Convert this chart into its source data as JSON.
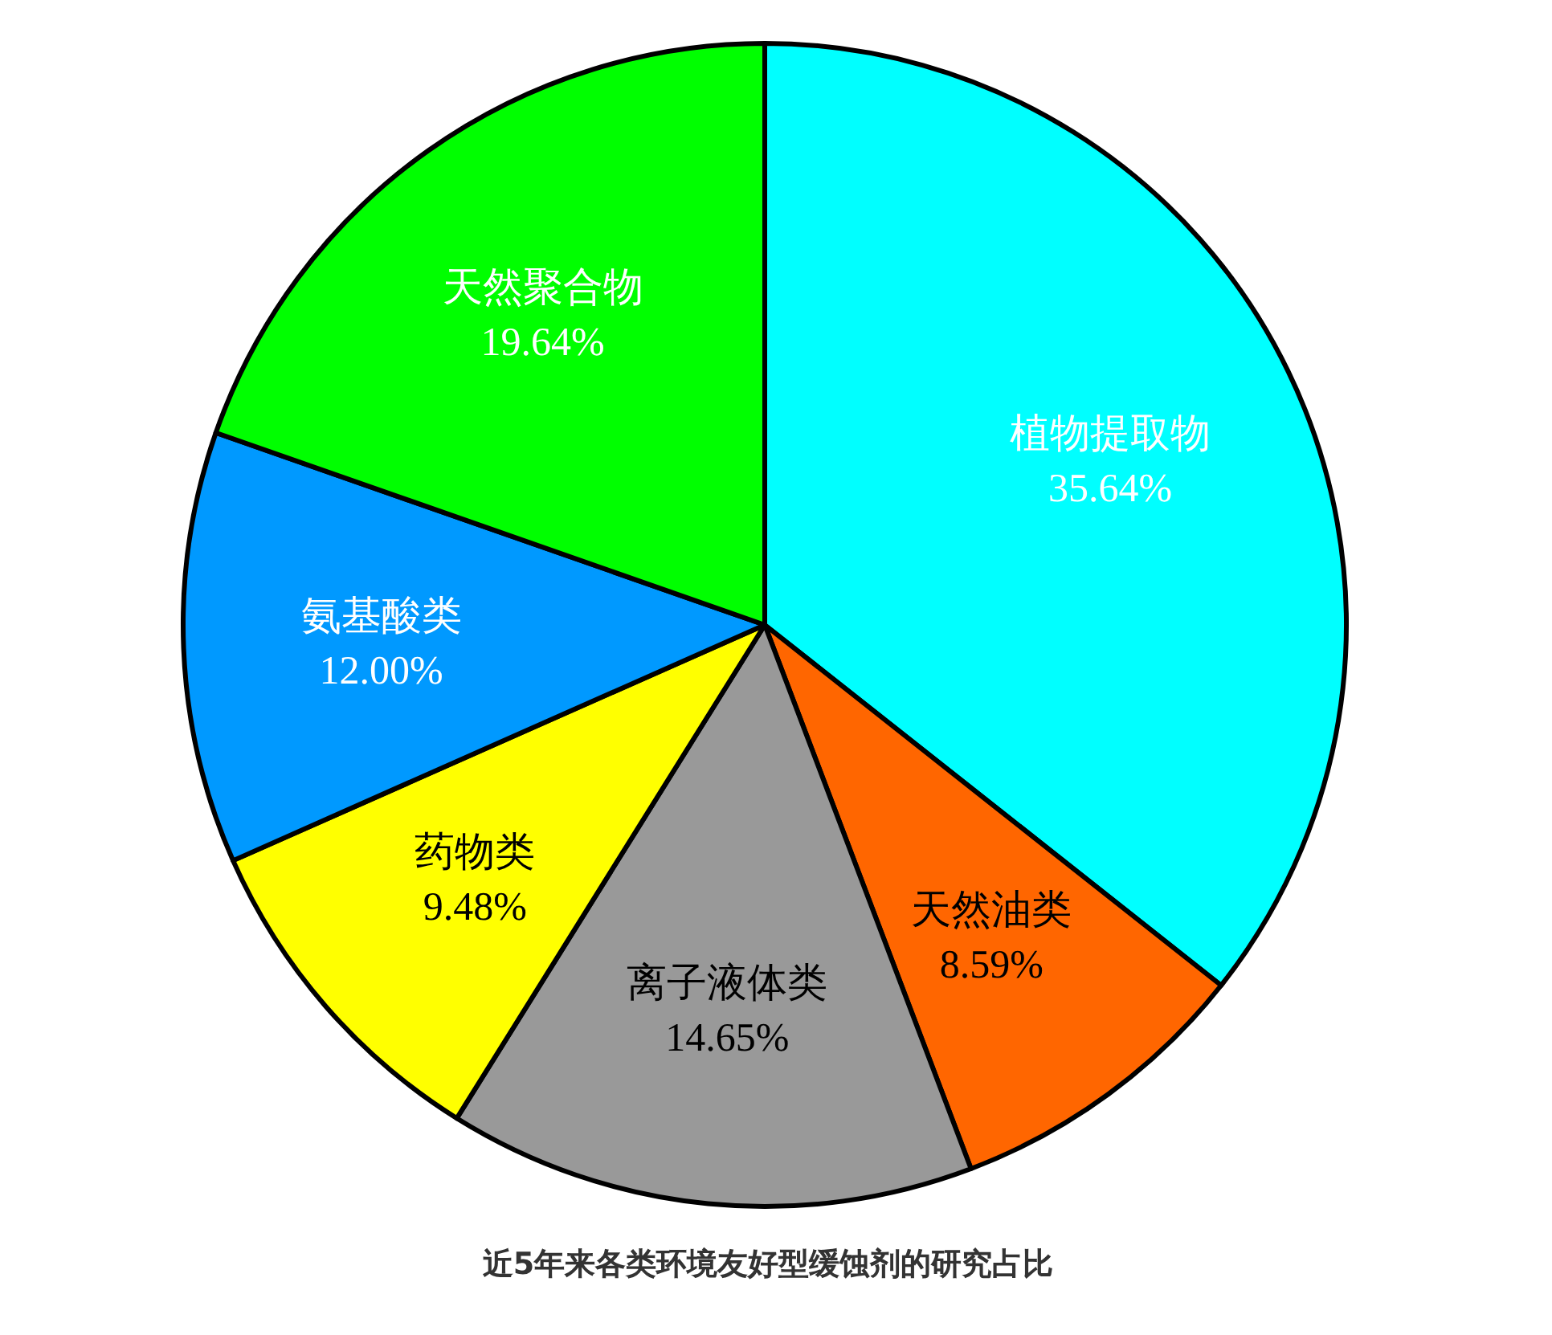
{
  "chart_data": {
    "type": "pie",
    "title": "近5年来各类环境友好型缓蚀剂的研究占比",
    "categories": [
      "植物提取物",
      "天然油类",
      "离子液体类",
      "药物类",
      "氨基酸类",
      "天然聚合物"
    ],
    "values": [
      35.64,
      8.59,
      14.65,
      9.48,
      12.0,
      19.64
    ],
    "colors": [
      "#00ffff",
      "#ff6600",
      "#999999",
      "#ffff00",
      "#0099ff",
      "#00ff00"
    ],
    "value_labels": [
      "35.64%",
      "8.59%",
      "14.65%",
      "9.48%",
      "12.00%",
      "19.64%"
    ]
  }
}
